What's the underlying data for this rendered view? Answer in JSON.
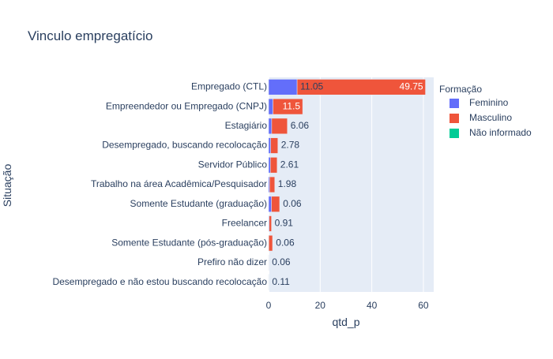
{
  "chart_data": {
    "type": "bar",
    "orientation": "horizontal",
    "barmode": "stack",
    "title": "Vinculo empregatício",
    "xlabel": "qtd_p",
    "ylabel": "Situação",
    "xlim": [
      0,
      64
    ],
    "xticks": [
      0,
      20,
      40,
      60
    ],
    "grid": true,
    "legend_title": "Formação",
    "legend_position": "right",
    "categories": [
      "Empregado (CTL)",
      "Empreendedor ou Empregado (CNPJ)",
      "Estagiário",
      "Desempregado, buscando recolocação",
      "Servidor Público",
      "Trabalho na área Acadêmica/Pesquisador",
      "Somente Estudante (graduação)",
      "Freelancer",
      "Somente Estudante (pós-graduação)",
      "Prefiro não dizer",
      "Desempregado e não estou buscando recolocação"
    ],
    "series": [
      {
        "name": "Feminino",
        "color": "#636efa",
        "values": [
          11.05,
          1.7,
          1.2,
          0.8,
          0.7,
          0.4,
          1.1,
          0.2,
          0.06,
          0.0,
          0.0
        ],
        "labels": [
          "11.05",
          "",
          "",
          "",
          "",
          "",
          "",
          "",
          "",
          "",
          ""
        ]
      },
      {
        "name": "Masculino",
        "color": "#ef553b",
        "values": [
          49.75,
          11.5,
          6.06,
          2.78,
          2.61,
          1.98,
          3.2,
          0.91,
          1.5,
          0.06,
          0.11
        ],
        "labels": [
          "49.75",
          "11.5",
          "6.06",
          "2.78",
          "2.61",
          "1.98",
          "",
          "0.91",
          "",
          "0.06",
          "0.11"
        ]
      },
      {
        "name": "Não informado",
        "color": "#00cc96",
        "values": [
          0,
          0,
          0,
          0,
          0,
          0,
          0.06,
          0,
          0.06,
          0,
          0
        ],
        "labels": [
          "",
          "",
          "",
          "",
          "",
          "",
          "0.06",
          "",
          "0.06",
          "",
          ""
        ]
      }
    ]
  }
}
